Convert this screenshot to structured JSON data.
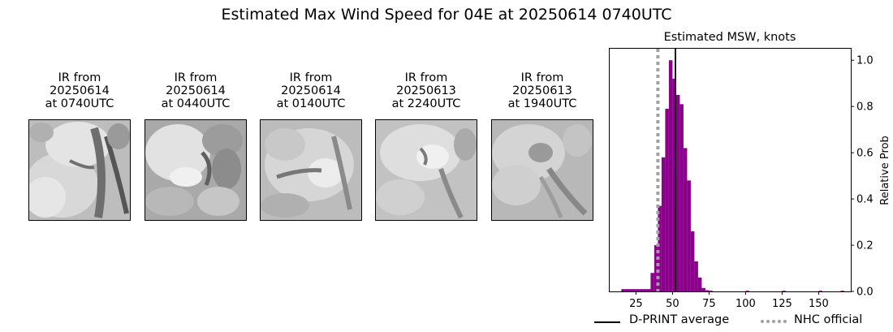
{
  "suptitle": "Estimated Max Wind Speed for 04E at 20250614 0740UTC",
  "ir_panels": [
    {
      "caption": "IR from\n20250614\nat 0740UTC",
      "image": "ir-satellite-image"
    },
    {
      "caption": "IR from\n20250614\nat 0440UTC",
      "image": "ir-satellite-image"
    },
    {
      "caption": "IR from\n20250614\nat 0140UTC",
      "image": "ir-satellite-image"
    },
    {
      "caption": "IR from\n20250613\nat 2240UTC",
      "image": "ir-satellite-image"
    },
    {
      "caption": "IR from\n20250613\nat 1940UTC",
      "image": "ir-satellite-image"
    }
  ],
  "chart_data": {
    "type": "bar",
    "title": "Estimated MSW, knots",
    "xlabel": "",
    "ylabel": "Relative Prob",
    "xlim": [
      7,
      172
    ],
    "ylim": [
      0,
      1.05
    ],
    "x_ticks": [
      25,
      50,
      75,
      100,
      125,
      150
    ],
    "y_ticks": [
      0.0,
      0.2,
      0.4,
      0.6,
      0.8,
      1.0
    ],
    "y_tick_labels": [
      "0.0",
      "0.2",
      "0.4",
      "0.6",
      "0.8",
      "1.0"
    ],
    "y_axis_side": "right",
    "bar_color": "#8b008b",
    "bin_width": 2.5,
    "bins": [
      {
        "x": 15,
        "y": 0.01
      },
      {
        "x": 17.5,
        "y": 0.01
      },
      {
        "x": 20,
        "y": 0.01
      },
      {
        "x": 22.5,
        "y": 0.01
      },
      {
        "x": 25,
        "y": 0.01
      },
      {
        "x": 27.5,
        "y": 0.01
      },
      {
        "x": 30,
        "y": 0.01
      },
      {
        "x": 32.5,
        "y": 0.01
      },
      {
        "x": 35,
        "y": 0.08
      },
      {
        "x": 37.5,
        "y": 0.2
      },
      {
        "x": 40,
        "y": 0.37
      },
      {
        "x": 42.5,
        "y": 0.58
      },
      {
        "x": 45,
        "y": 0.79
      },
      {
        "x": 47.5,
        "y": 1.0
      },
      {
        "x": 50,
        "y": 0.92
      },
      {
        "x": 52.5,
        "y": 0.85
      },
      {
        "x": 55,
        "y": 0.81
      },
      {
        "x": 57.5,
        "y": 0.62
      },
      {
        "x": 60,
        "y": 0.48
      },
      {
        "x": 62.5,
        "y": 0.26
      },
      {
        "x": 65,
        "y": 0.13
      },
      {
        "x": 67.5,
        "y": 0.06
      },
      {
        "x": 70,
        "y": 0.015
      },
      {
        "x": 72.5,
        "y": 0.005
      },
      {
        "x": 75,
        "y": 0.003
      },
      {
        "x": 100,
        "y": 0.003
      },
      {
        "x": 125,
        "y": 0.003
      },
      {
        "x": 150,
        "y": 0.003
      },
      {
        "x": 165,
        "y": 0.003
      }
    ],
    "reference_lines": [
      {
        "name": "D-PRINT average",
        "x": 52,
        "color": "#000000",
        "style": "solid"
      },
      {
        "name": "NHC official",
        "x": 40,
        "color": "#a0a0a0",
        "style": "dotted"
      }
    ],
    "legend": {
      "placement": "bottom",
      "entries": [
        "D-PRINT average",
        "NHC official"
      ]
    }
  }
}
